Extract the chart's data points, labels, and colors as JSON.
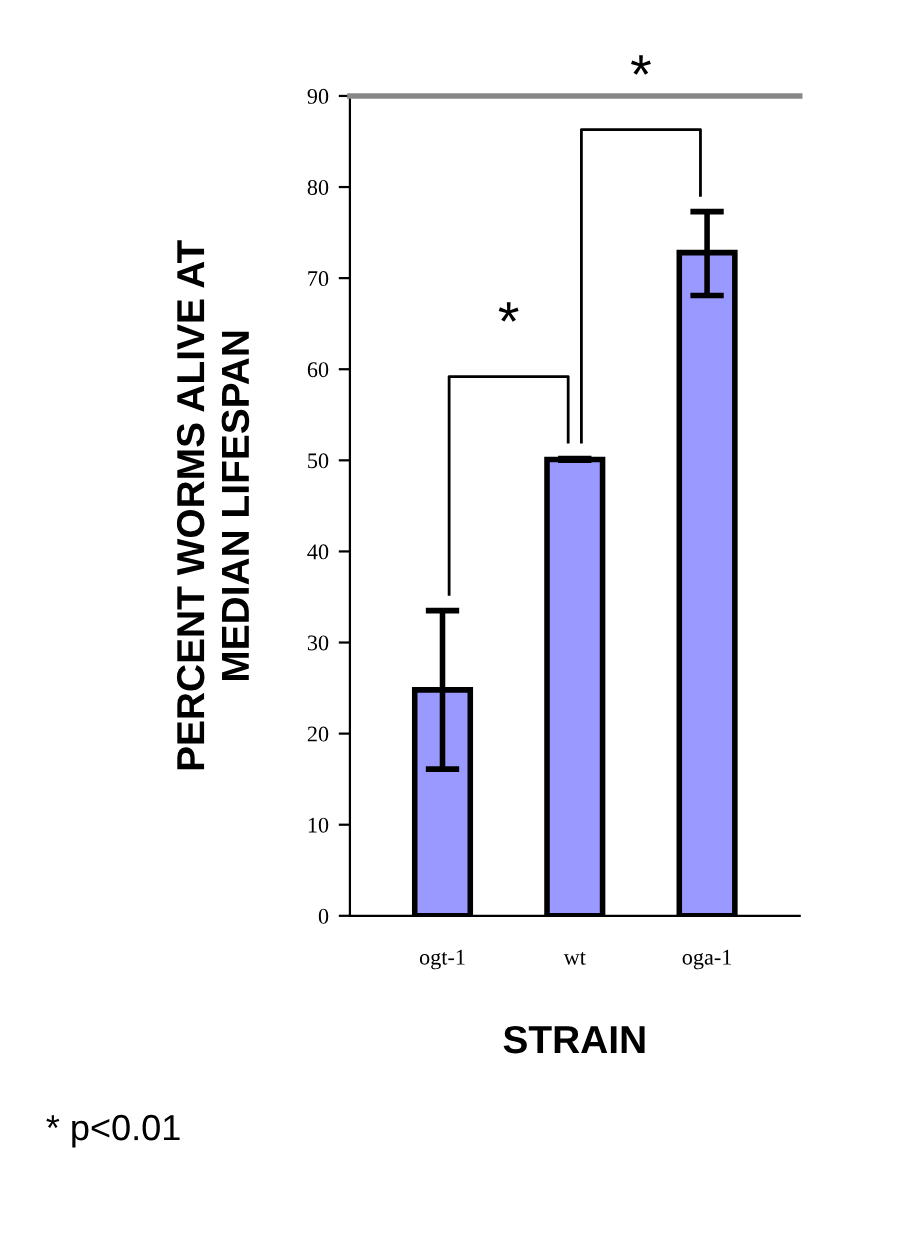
{
  "chart_data": {
    "type": "bar",
    "xlabel": "STRAIN",
    "ylabel": "PERCENT WORMS ALIVE AT\nMEDIAN LIFESPAN",
    "categories": [
      "ogt-1",
      "wt",
      "oga-1"
    ],
    "values": [
      24.8,
      50.1,
      72.8
    ],
    "errors": [
      [
        16.1,
        33.5
      ],
      [
        50.0,
        50.2
      ],
      [
        68.1,
        77.3
      ]
    ],
    "color": "#9999ff",
    "ylim": [
      0,
      90
    ],
    "yticks": [
      0,
      10,
      20,
      30,
      40,
      50,
      60,
      70,
      80,
      90
    ],
    "grid": false,
    "annotations": [
      "*",
      "*",
      "* p<0.01"
    ]
  }
}
